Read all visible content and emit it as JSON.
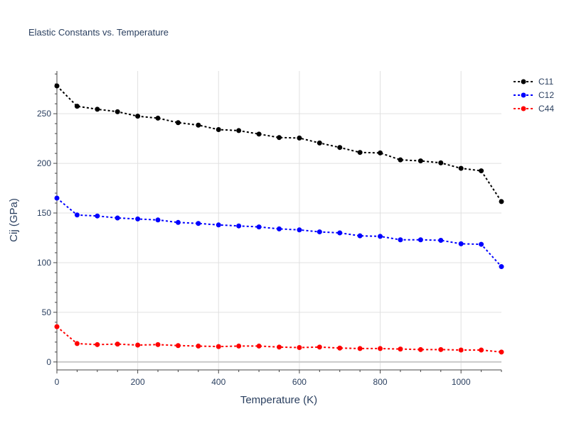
{
  "chart_data": {
    "type": "line",
    "title": "Elastic Constants vs. Temperature",
    "xlabel": "Temperature (K)",
    "ylabel": "Cij (GPa)",
    "xlim": [
      0,
      1100
    ],
    "ylim": [
      -8,
      293
    ],
    "xticks": [
      0,
      200,
      400,
      600,
      800,
      1000
    ],
    "yticks": [
      0,
      50,
      100,
      150,
      200,
      250
    ],
    "grid": true,
    "legend_position": "top-right",
    "x": [
      0,
      50,
      100,
      150,
      200,
      250,
      300,
      350,
      400,
      450,
      500,
      550,
      600,
      650,
      700,
      750,
      800,
      850,
      900,
      950,
      1000,
      1050,
      1100
    ],
    "series": [
      {
        "name": "C11",
        "color": "#000000",
        "values": [
          278,
          257.5,
          254.5,
          252,
          247.5,
          245.5,
          241,
          238.5,
          234,
          233,
          229.5,
          226,
          225.5,
          220.5,
          216,
          211,
          210.5,
          203.5,
          202.5,
          200.5,
          195,
          192.5,
          161.5
        ]
      },
      {
        "name": "C12",
        "color": "#0000ff",
        "values": [
          165,
          148,
          147,
          145,
          144,
          143,
          140.5,
          139.5,
          138,
          137,
          136,
          134,
          133,
          131,
          130,
          127,
          126.5,
          123,
          123,
          122.5,
          119,
          118.5,
          96
        ]
      },
      {
        "name": "C44",
        "color": "#ff0000",
        "values": [
          35.5,
          18.5,
          17.5,
          18,
          17,
          17.5,
          16.5,
          16,
          15.5,
          16,
          16,
          15,
          14.5,
          15,
          14,
          13.5,
          13.5,
          13,
          12.5,
          12.5,
          12,
          12,
          10
        ]
      }
    ]
  }
}
